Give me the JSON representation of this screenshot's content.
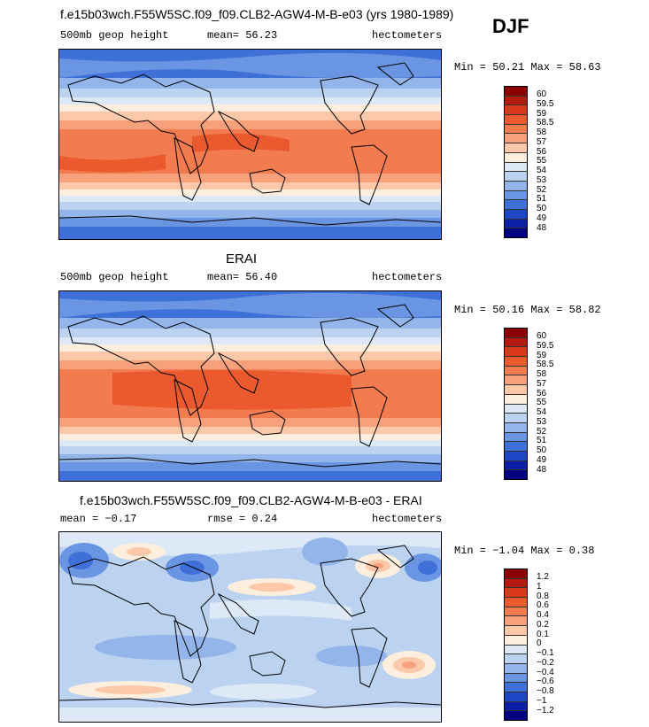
{
  "season": "DJF",
  "panels": [
    {
      "title": "f.e15b03wch.F55W5SC.f09_f09.CLB2-AGW4-M-B-e03 (yrs 1980-1989)",
      "left_label": "500mb geop height",
      "center_label": "mean=  56.23",
      "right_label": "hectometers",
      "minmax": "Min =  50.21 Max =  58.63",
      "colorbar": {
        "labels": [
          "60",
          "59.5",
          "59",
          "58.5",
          "58",
          "57",
          "56",
          "55",
          "54",
          "53",
          "52",
          "51",
          "50",
          "49",
          "48"
        ],
        "colors": [
          "#8b0000",
          "#b51a10",
          "#d9381c",
          "#ea5a2e",
          "#f27c50",
          "#f6a07c",
          "#fbc8a9",
          "#fdeede",
          "#dde9f7",
          "#bcd2f1",
          "#93b5ea",
          "#6a95e2",
          "#3e70d8",
          "#1d46c4",
          "#0a1ea8",
          "#000080"
        ]
      }
    },
    {
      "title": "ERAI",
      "left_label": "500mb geop height",
      "center_label": "mean=  56.40",
      "right_label": "hectometers",
      "minmax": "Min =  50.16 Max =  58.82",
      "colorbar": {
        "labels": [
          "60",
          "59.5",
          "59",
          "58.5",
          "58",
          "57",
          "56",
          "55",
          "54",
          "53",
          "52",
          "51",
          "50",
          "49",
          "48"
        ],
        "colors": [
          "#8b0000",
          "#b51a10",
          "#d9381c",
          "#ea5a2e",
          "#f27c50",
          "#f6a07c",
          "#fbc8a9",
          "#fdeede",
          "#dde9f7",
          "#bcd2f1",
          "#93b5ea",
          "#6a95e2",
          "#3e70d8",
          "#1d46c4",
          "#0a1ea8",
          "#000080"
        ]
      }
    },
    {
      "title": "f.e15b03wch.F55W5SC.f09_f09.CLB2-AGW4-M-B-e03 - ERAI",
      "left_label": "mean =  −0.17",
      "center_label": "rmse =   0.24",
      "right_label": "hectometers",
      "minmax": "Min =  −1.04 Max =   0.38",
      "colorbar": {
        "labels": [
          "1.2",
          "1",
          "0.8",
          "0.6",
          "0.4",
          "0.2",
          "0.1",
          "0",
          "−0.1",
          "−0.2",
          "−0.4",
          "−0.6",
          "−0.8",
          "−1",
          "−1.2"
        ],
        "colors": [
          "#8b0000",
          "#b51a10",
          "#d9381c",
          "#ea5a2e",
          "#f27c50",
          "#f6a07c",
          "#fbc8a9",
          "#fdeede",
          "#dde9f7",
          "#bcd2f1",
          "#93b5ea",
          "#6a95e2",
          "#3e70d8",
          "#1d46c4",
          "#0a1ea8",
          "#000080"
        ]
      }
    }
  ]
}
